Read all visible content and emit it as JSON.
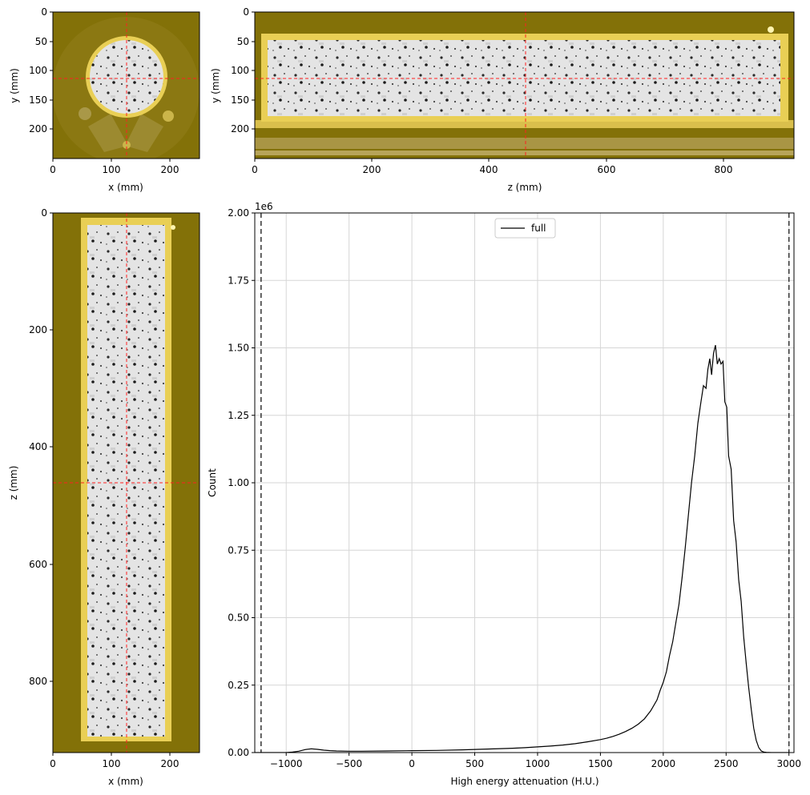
{
  "panels": {
    "top_left": {
      "xlabel": "x (mm)",
      "ylabel": "y (mm)",
      "xticks": [
        "0",
        "100",
        "200"
      ],
      "yticks": [
        "0",
        "50",
        "100",
        "150",
        "200"
      ]
    },
    "top_right": {
      "xlabel": "z (mm)",
      "ylabel": "y (mm)",
      "xticks": [
        "0",
        "200",
        "400",
        "600",
        "800"
      ],
      "yticks": [
        "0",
        "50",
        "100",
        "150",
        "200"
      ]
    },
    "bottom_left": {
      "xlabel": "x (mm)",
      "ylabel": "z (mm)",
      "xticks": [
        "0",
        "100",
        "200"
      ],
      "yticks": [
        "0",
        "200",
        "400",
        "600",
        "800"
      ]
    }
  },
  "colors": {
    "scan_background": "#837108",
    "container": "#e9cf55",
    "core": "#e8e8e8",
    "crosshair": "#ff2020",
    "line": "#000000",
    "grid": "#d6d6d6"
  },
  "chart_data": {
    "type": "line",
    "xlabel": "High energy attenuation (H.U.)",
    "ylabel": "Count",
    "scale_label": "1e6",
    "xlim": [
      -1250,
      3040
    ],
    "ylim": [
      0,
      2000000
    ],
    "xticks": [
      -1000,
      -500,
      0,
      500,
      1000,
      1500,
      2000,
      2500,
      3000
    ],
    "xtick_labels": [
      "−1000",
      "−500",
      "0",
      "500",
      "1000",
      "1500",
      "2000",
      "2500",
      "3000"
    ],
    "yticks": [
      0,
      250000,
      500000,
      750000,
      1000000,
      1250000,
      1500000,
      1750000,
      2000000
    ],
    "ytick_labels": [
      "0.00",
      "0.25",
      "0.50",
      "0.75",
      "1.00",
      "1.25",
      "1.50",
      "1.75",
      "2.00"
    ],
    "grid": true,
    "legend": {
      "position": "top-center",
      "entries": [
        "full"
      ]
    },
    "vlines": [
      -1200,
      3000
    ],
    "series": [
      {
        "name": "full",
        "x": [
          -1250,
          -1100,
          -1000,
          -950,
          -900,
          -850,
          -800,
          -750,
          -700,
          -650,
          -600,
          -500,
          -400,
          -200,
          0,
          200,
          400,
          600,
          800,
          900,
          1000,
          1100,
          1200,
          1300,
          1400,
          1500,
          1550,
          1600,
          1650,
          1700,
          1750,
          1800,
          1850,
          1900,
          1950,
          1975,
          2000,
          2025,
          2050,
          2075,
          2100,
          2125,
          2150,
          2175,
          2200,
          2225,
          2250,
          2275,
          2300,
          2320,
          2340,
          2355,
          2370,
          2385,
          2400,
          2415,
          2430,
          2445,
          2460,
          2475,
          2490,
          2505,
          2520,
          2540,
          2560,
          2580,
          2600,
          2620,
          2640,
          2660,
          2680,
          2700,
          2720,
          2740,
          2760,
          2780,
          2800,
          2820,
          2840,
          2860,
          2880,
          2900,
          2950,
          3000
        ],
        "values": [
          0,
          0,
          0,
          2000,
          5000,
          11000,
          14000,
          12000,
          9000,
          7000,
          6000,
          5000,
          5000,
          6000,
          7000,
          8000,
          10000,
          13000,
          16000,
          18000,
          21000,
          24000,
          28000,
          33000,
          40000,
          48000,
          53000,
          60000,
          68000,
          78000,
          90000,
          105000,
          125000,
          155000,
          195000,
          230000,
          260000,
          300000,
          360000,
          410000,
          480000,
          550000,
          650000,
          760000,
          880000,
          1000000,
          1100000,
          1220000,
          1300000,
          1360000,
          1350000,
          1420000,
          1460000,
          1400000,
          1480000,
          1510000,
          1440000,
          1460000,
          1440000,
          1450000,
          1300000,
          1280000,
          1100000,
          1050000,
          860000,
          780000,
          640000,
          560000,
          430000,
          330000,
          240000,
          160000,
          90000,
          45000,
          18000,
          6000,
          2000,
          1000,
          500,
          0,
          0,
          0,
          0,
          0
        ]
      }
    ]
  }
}
